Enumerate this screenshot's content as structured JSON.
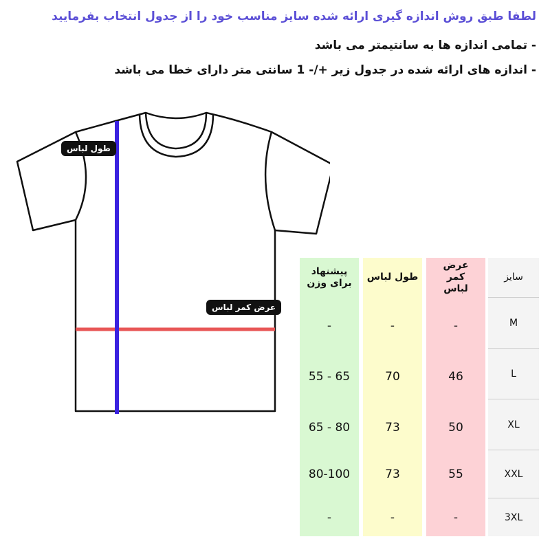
{
  "instructions": {
    "line1": "لطفا طبق روش اندازه گیری ارائه شده سایز مناسب خود را از جدول انتخاب بفرمایید",
    "line2": "- تمامی اندازه ها به سانتیمتر می باشد",
    "line3": "- اندازه های ارائه شده در جدول زیر +/- 1 سانتی متر دارای خطا می باشد"
  },
  "diagram": {
    "length_label": "طول لباس",
    "width_label": "عرض کمر لباس",
    "length_color": "#3a22e0",
    "width_color": "#e85656"
  },
  "table": {
    "headers": {
      "size": "سایز",
      "width": "عرض کمر لباس",
      "length": "طول لباس",
      "weight": "پیشنهاد برای وزن"
    },
    "colors": {
      "size": "#f4f4f4",
      "width": "#fdd2d6",
      "length": "#fdfccc",
      "weight": "#d9f8d2"
    },
    "rows": [
      {
        "size": "M",
        "width": "-",
        "length": "-",
        "weight": "-"
      },
      {
        "size": "L",
        "width": "46",
        "length": "70",
        "weight": "55 - 65"
      },
      {
        "size": "XL",
        "width": "50",
        "length": "73",
        "weight": "65 - 80"
      },
      {
        "size": "XXL",
        "width": "55",
        "length": "73",
        "weight": "80-100"
      },
      {
        "size": "3XL",
        "width": "-",
        "length": "-",
        "weight": "-"
      }
    ]
  }
}
